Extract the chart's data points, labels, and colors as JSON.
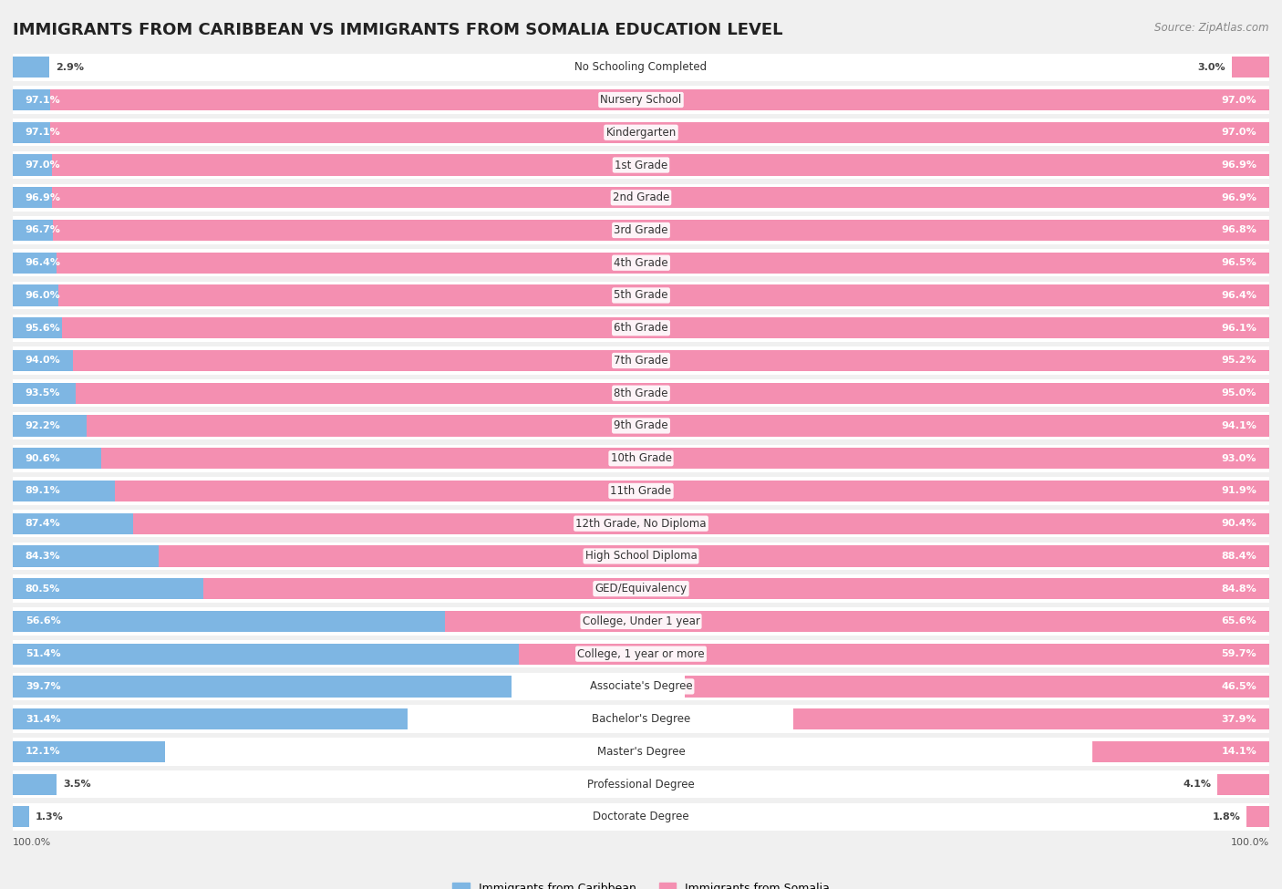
{
  "title": "IMMIGRANTS FROM CARIBBEAN VS IMMIGRANTS FROM SOMALIA EDUCATION LEVEL",
  "source": "Source: ZipAtlas.com",
  "categories": [
    "No Schooling Completed",
    "Nursery School",
    "Kindergarten",
    "1st Grade",
    "2nd Grade",
    "3rd Grade",
    "4th Grade",
    "5th Grade",
    "6th Grade",
    "7th Grade",
    "8th Grade",
    "9th Grade",
    "10th Grade",
    "11th Grade",
    "12th Grade, No Diploma",
    "High School Diploma",
    "GED/Equivalency",
    "College, Under 1 year",
    "College, 1 year or more",
    "Associate's Degree",
    "Bachelor's Degree",
    "Master's Degree",
    "Professional Degree",
    "Doctorate Degree"
  ],
  "caribbean": [
    2.9,
    97.1,
    97.1,
    97.0,
    96.9,
    96.7,
    96.4,
    96.0,
    95.6,
    94.0,
    93.5,
    92.2,
    90.6,
    89.1,
    87.4,
    84.3,
    80.5,
    56.6,
    51.4,
    39.7,
    31.4,
    12.1,
    3.5,
    1.3
  ],
  "somalia": [
    3.0,
    97.0,
    97.0,
    96.9,
    96.9,
    96.8,
    96.5,
    96.4,
    96.1,
    95.2,
    95.0,
    94.1,
    93.0,
    91.9,
    90.4,
    88.4,
    84.8,
    65.6,
    59.7,
    46.5,
    37.9,
    14.1,
    4.1,
    1.8
  ],
  "caribbean_color": "#7eb6e3",
  "somalia_color": "#f48fb1",
  "background_color": "#f0f0f0",
  "bar_background": "#ffffff",
  "title_fontsize": 13,
  "label_fontsize": 8.5,
  "value_fontsize": 8.0,
  "legend_fontsize": 9,
  "bar_height": 0.65,
  "legend_label_caribbean": "Immigrants from Caribbean",
  "legend_label_somalia": "Immigrants from Somalia"
}
